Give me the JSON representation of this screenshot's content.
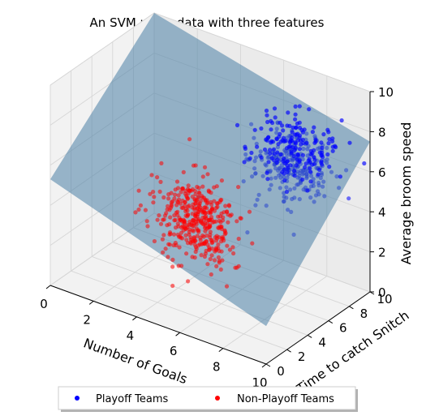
{
  "chart_data": {
    "type": "scatter3d",
    "title": "An SVM using data with three features",
    "xlabel": "Number of Goals",
    "ylabel": "Time to catch Snitch",
    "zlabel": "Average broom speed",
    "xlim": [
      0,
      10
    ],
    "ylim": [
      0,
      10
    ],
    "zlim": [
      0,
      10
    ],
    "xticks": [
      "0",
      "2",
      "4",
      "6",
      "8",
      "10"
    ],
    "yticks": [
      "0",
      "2",
      "4",
      "6",
      "8",
      "10"
    ],
    "zticks": [
      "0",
      "2",
      "4",
      "6",
      "8",
      "10"
    ],
    "grid": true,
    "legend": {
      "placement": "bottom-center"
    },
    "series": [
      {
        "name": "Playoff Teams",
        "color": "#0000ff",
        "center": [
          7.6,
          7.6,
          6.6
        ],
        "spread": [
          1.0,
          1.0,
          1.0
        ],
        "count": 400
      },
      {
        "name": "Non-Playoff Teams",
        "color": "#ff0000",
        "center": [
          4.6,
          4.6,
          3.4
        ],
        "spread": [
          1.0,
          1.0,
          1.0
        ],
        "count": 400
      }
    ],
    "decision_plane": {
      "color": "#4a7fa5",
      "opacity": 0.55,
      "corners_z": [
        [
          0,
          0,
          5.3
        ],
        [
          10,
          0,
          1.9
        ],
        [
          10,
          10,
          7.5
        ],
        [
          0,
          10,
          10
        ]
      ]
    }
  }
}
